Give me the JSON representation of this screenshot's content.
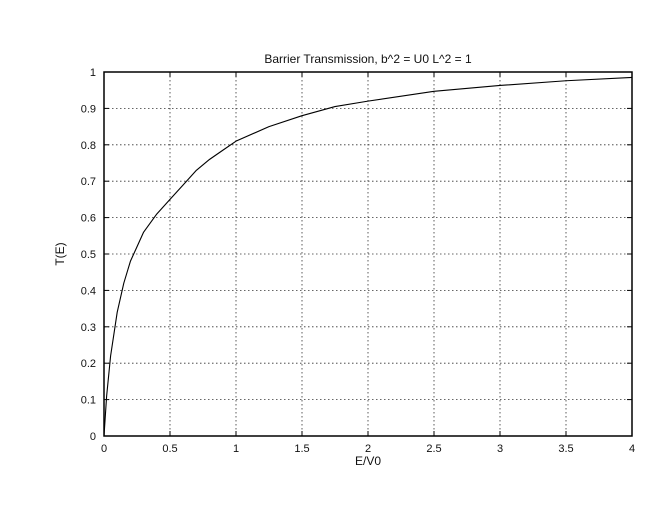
{
  "chart_data": {
    "type": "line",
    "title": "Barrier Transmission, b^2 = U0 L^2 = 1",
    "xlabel": "E/V0",
    "ylabel": "T(E)",
    "xlim": [
      0,
      4
    ],
    "ylim": [
      0,
      1
    ],
    "grid": true,
    "xticks": [
      0,
      0.5,
      1,
      1.5,
      2,
      2.5,
      3,
      3.5,
      4
    ],
    "xtick_labels": [
      "0",
      "0.5",
      "1",
      "1.5",
      "2",
      "2.5",
      "3",
      "3.5",
      "4"
    ],
    "yticks": [
      0,
      0.1,
      0.2,
      0.3,
      0.4,
      0.5,
      0.6,
      0.7,
      0.8,
      0.9,
      1
    ],
    "ytick_labels": [
      "0",
      "0.1",
      "0.2",
      "0.3",
      "0.4",
      "0.5",
      "0.6",
      "0.7",
      "0.8",
      "0.9",
      "1"
    ],
    "series": [
      {
        "color": "#000000",
        "x": [
          0,
          0.02,
          0.05,
          0.1,
          0.15,
          0.2,
          0.25,
          0.3,
          0.4,
          0.5,
          0.6,
          0.7,
          0.8,
          0.9,
          1.0,
          1.25,
          1.5,
          1.75,
          2.0,
          2.5,
          3.0,
          3.5,
          4.0
        ],
        "y": [
          0,
          0.11,
          0.22,
          0.34,
          0.42,
          0.48,
          0.52,
          0.56,
          0.61,
          0.65,
          0.69,
          0.73,
          0.76,
          0.785,
          0.81,
          0.85,
          0.88,
          0.905,
          0.92,
          0.947,
          0.963,
          0.976,
          0.985
        ]
      }
    ]
  }
}
